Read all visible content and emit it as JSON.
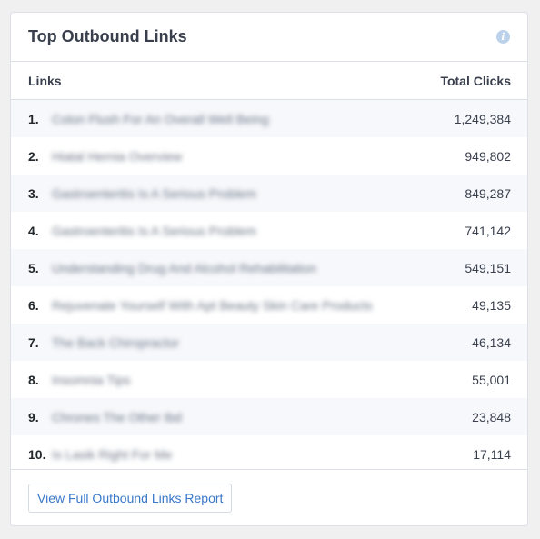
{
  "widget": {
    "title": "Top Outbound Links",
    "info_icon": "info-icon"
  },
  "table": {
    "headers": {
      "links": "Links",
      "clicks": "Total Clicks"
    },
    "rows": [
      {
        "num": "1.",
        "link": "Colon Flush For An Overall Well Being",
        "clicks": "1,249,384"
      },
      {
        "num": "2.",
        "link": "Hiatal Hernia Overview",
        "clicks": "949,802"
      },
      {
        "num": "3.",
        "link": "Gastroenteritis Is A Serious Problem",
        "clicks": "849,287"
      },
      {
        "num": "4.",
        "link": "Gastroenteritis Is A Serious Problem",
        "clicks": "741,142"
      },
      {
        "num": "5.",
        "link": "Understanding Drug And Alcohol Rehabilitation",
        "clicks": "549,151"
      },
      {
        "num": "6.",
        "link": "Rejuvenate Yourself With Apt Beauty Skin Care Products",
        "clicks": "49,135"
      },
      {
        "num": "7.",
        "link": "The Back Chiropractor",
        "clicks": "46,134"
      },
      {
        "num": "8.",
        "link": "Insomnia Tips",
        "clicks": "55,001"
      },
      {
        "num": "9.",
        "link": "Chrones The Other Ibd",
        "clicks": "23,848"
      },
      {
        "num": "10.",
        "link": "Is Lasik Right For Me",
        "clicks": "17,114"
      }
    ]
  },
  "footer": {
    "report_button": "View Full Outbound Links Report"
  },
  "colors": {
    "accent": "#3a78c9",
    "alt_row": "#f6f8fb",
    "border": "#dcdfe6"
  }
}
